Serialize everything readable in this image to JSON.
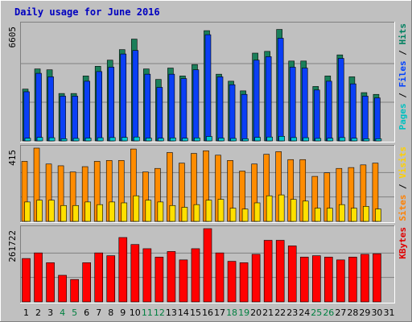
{
  "chart_data": {
    "type": "bar",
    "title": "Daily usage for June 2016",
    "categories": [
      "1",
      "2",
      "3",
      "4",
      "5",
      "6",
      "7",
      "8",
      "9",
      "10",
      "11",
      "12",
      "13",
      "14",
      "15",
      "16",
      "17",
      "18",
      "19",
      "20",
      "21",
      "22",
      "23",
      "24",
      "25",
      "26",
      "27",
      "28",
      "29",
      "30",
      "31"
    ],
    "weekend_days": [
      "4",
      "5",
      "11",
      "12",
      "18",
      "19",
      "25",
      "26"
    ],
    "panels": [
      {
        "id": "hits",
        "ymax_label": "6605",
        "ymax": 6605,
        "side_label": [
          {
            "text": "Pages",
            "color": "#00c0c0"
          },
          {
            "text": " / ",
            "color": "#000000"
          },
          {
            "text": "Files",
            "color": "#0040ff"
          },
          {
            "text": " / ",
            "color": "#000000"
          },
          {
            "text": "Hits",
            "color": "#008060"
          }
        ],
        "series": [
          {
            "name": "Hits",
            "color": "#1a7f5a",
            "values": [
              2950,
              4100,
              4050,
              2700,
              2700,
              3700,
              4250,
              4600,
              5200,
              5800,
              4100,
              3500,
              4150,
              3700,
              4350,
              6280,
              3800,
              3400,
              2850,
              5000,
              5100,
              6350,
              4550,
              4550,
              3100,
              3700,
              4900,
              3650,
              2750,
              2650,
              0
            ]
          },
          {
            "name": "Files",
            "color": "#0a3ff5",
            "values": [
              2800,
              3850,
              3650,
              2550,
              2550,
              3400,
              3950,
              4200,
              4950,
              5150,
              3800,
              3050,
              3800,
              3550,
              4050,
              6050,
              3650,
              3200,
              2650,
              4600,
              4800,
              5850,
              4200,
              4150,
              2900,
              3400,
              4700,
              3250,
              2550,
              2450,
              0
            ]
          },
          {
            "name": "Pages",
            "color": "#00c8d0",
            "values": [
              150,
              200,
              180,
              120,
              140,
              160,
              180,
              190,
              200,
              220,
              160,
              150,
              170,
              150,
              170,
              250,
              160,
              140,
              120,
              200,
              220,
              260,
              190,
              180,
              140,
              150,
              190,
              150,
              120,
              120,
              0
            ]
          }
        ]
      },
      {
        "id": "visits",
        "ymax_label": "415",
        "ymax": 415,
        "side_label": [
          {
            "text": "Sites",
            "color": "#ff8000"
          },
          {
            "text": " / ",
            "color": "#000000"
          },
          {
            "text": "Visits",
            "color": "#ffd000"
          }
        ],
        "series": [
          {
            "name": "Visits",
            "color": "#ff8c00",
            "values": [
              340,
              415,
              325,
              315,
              280,
              310,
              340,
              345,
              345,
              410,
              280,
              300,
              390,
              330,
              385,
              400,
              375,
              345,
              285,
              325,
              380,
              395,
              350,
              350,
              255,
              275,
              300,
              305,
              320,
              330,
              0
            ]
          },
          {
            "name": "Sites",
            "color": "#ffe000",
            "values": [
              110,
              120,
              120,
              90,
              90,
              110,
              95,
              110,
              105,
              145,
              120,
              110,
              90,
              80,
              95,
              120,
              125,
              75,
              70,
              105,
              145,
              150,
              125,
              115,
              75,
              75,
              95,
              75,
              85,
              70,
              0
            ]
          }
        ]
      },
      {
        "id": "kbytes",
        "ymax_label": "261722",
        "ymax": 261722,
        "side_label": [
          {
            "text": "KBytes",
            "color": "#e00000"
          }
        ],
        "series": [
          {
            "name": "KBytes",
            "color": "#ff0000",
            "values": [
              155000,
              175000,
              140000,
              95000,
              80000,
              140000,
              175000,
              165000,
              230000,
              205000,
              190000,
              160000,
              180000,
              150000,
              190000,
              261722,
              175000,
              145000,
              140000,
              170000,
              220000,
              220000,
              200000,
              160000,
              165000,
              160000,
              150000,
              160000,
              170000,
              172000,
              0
            ]
          }
        ]
      }
    ]
  }
}
